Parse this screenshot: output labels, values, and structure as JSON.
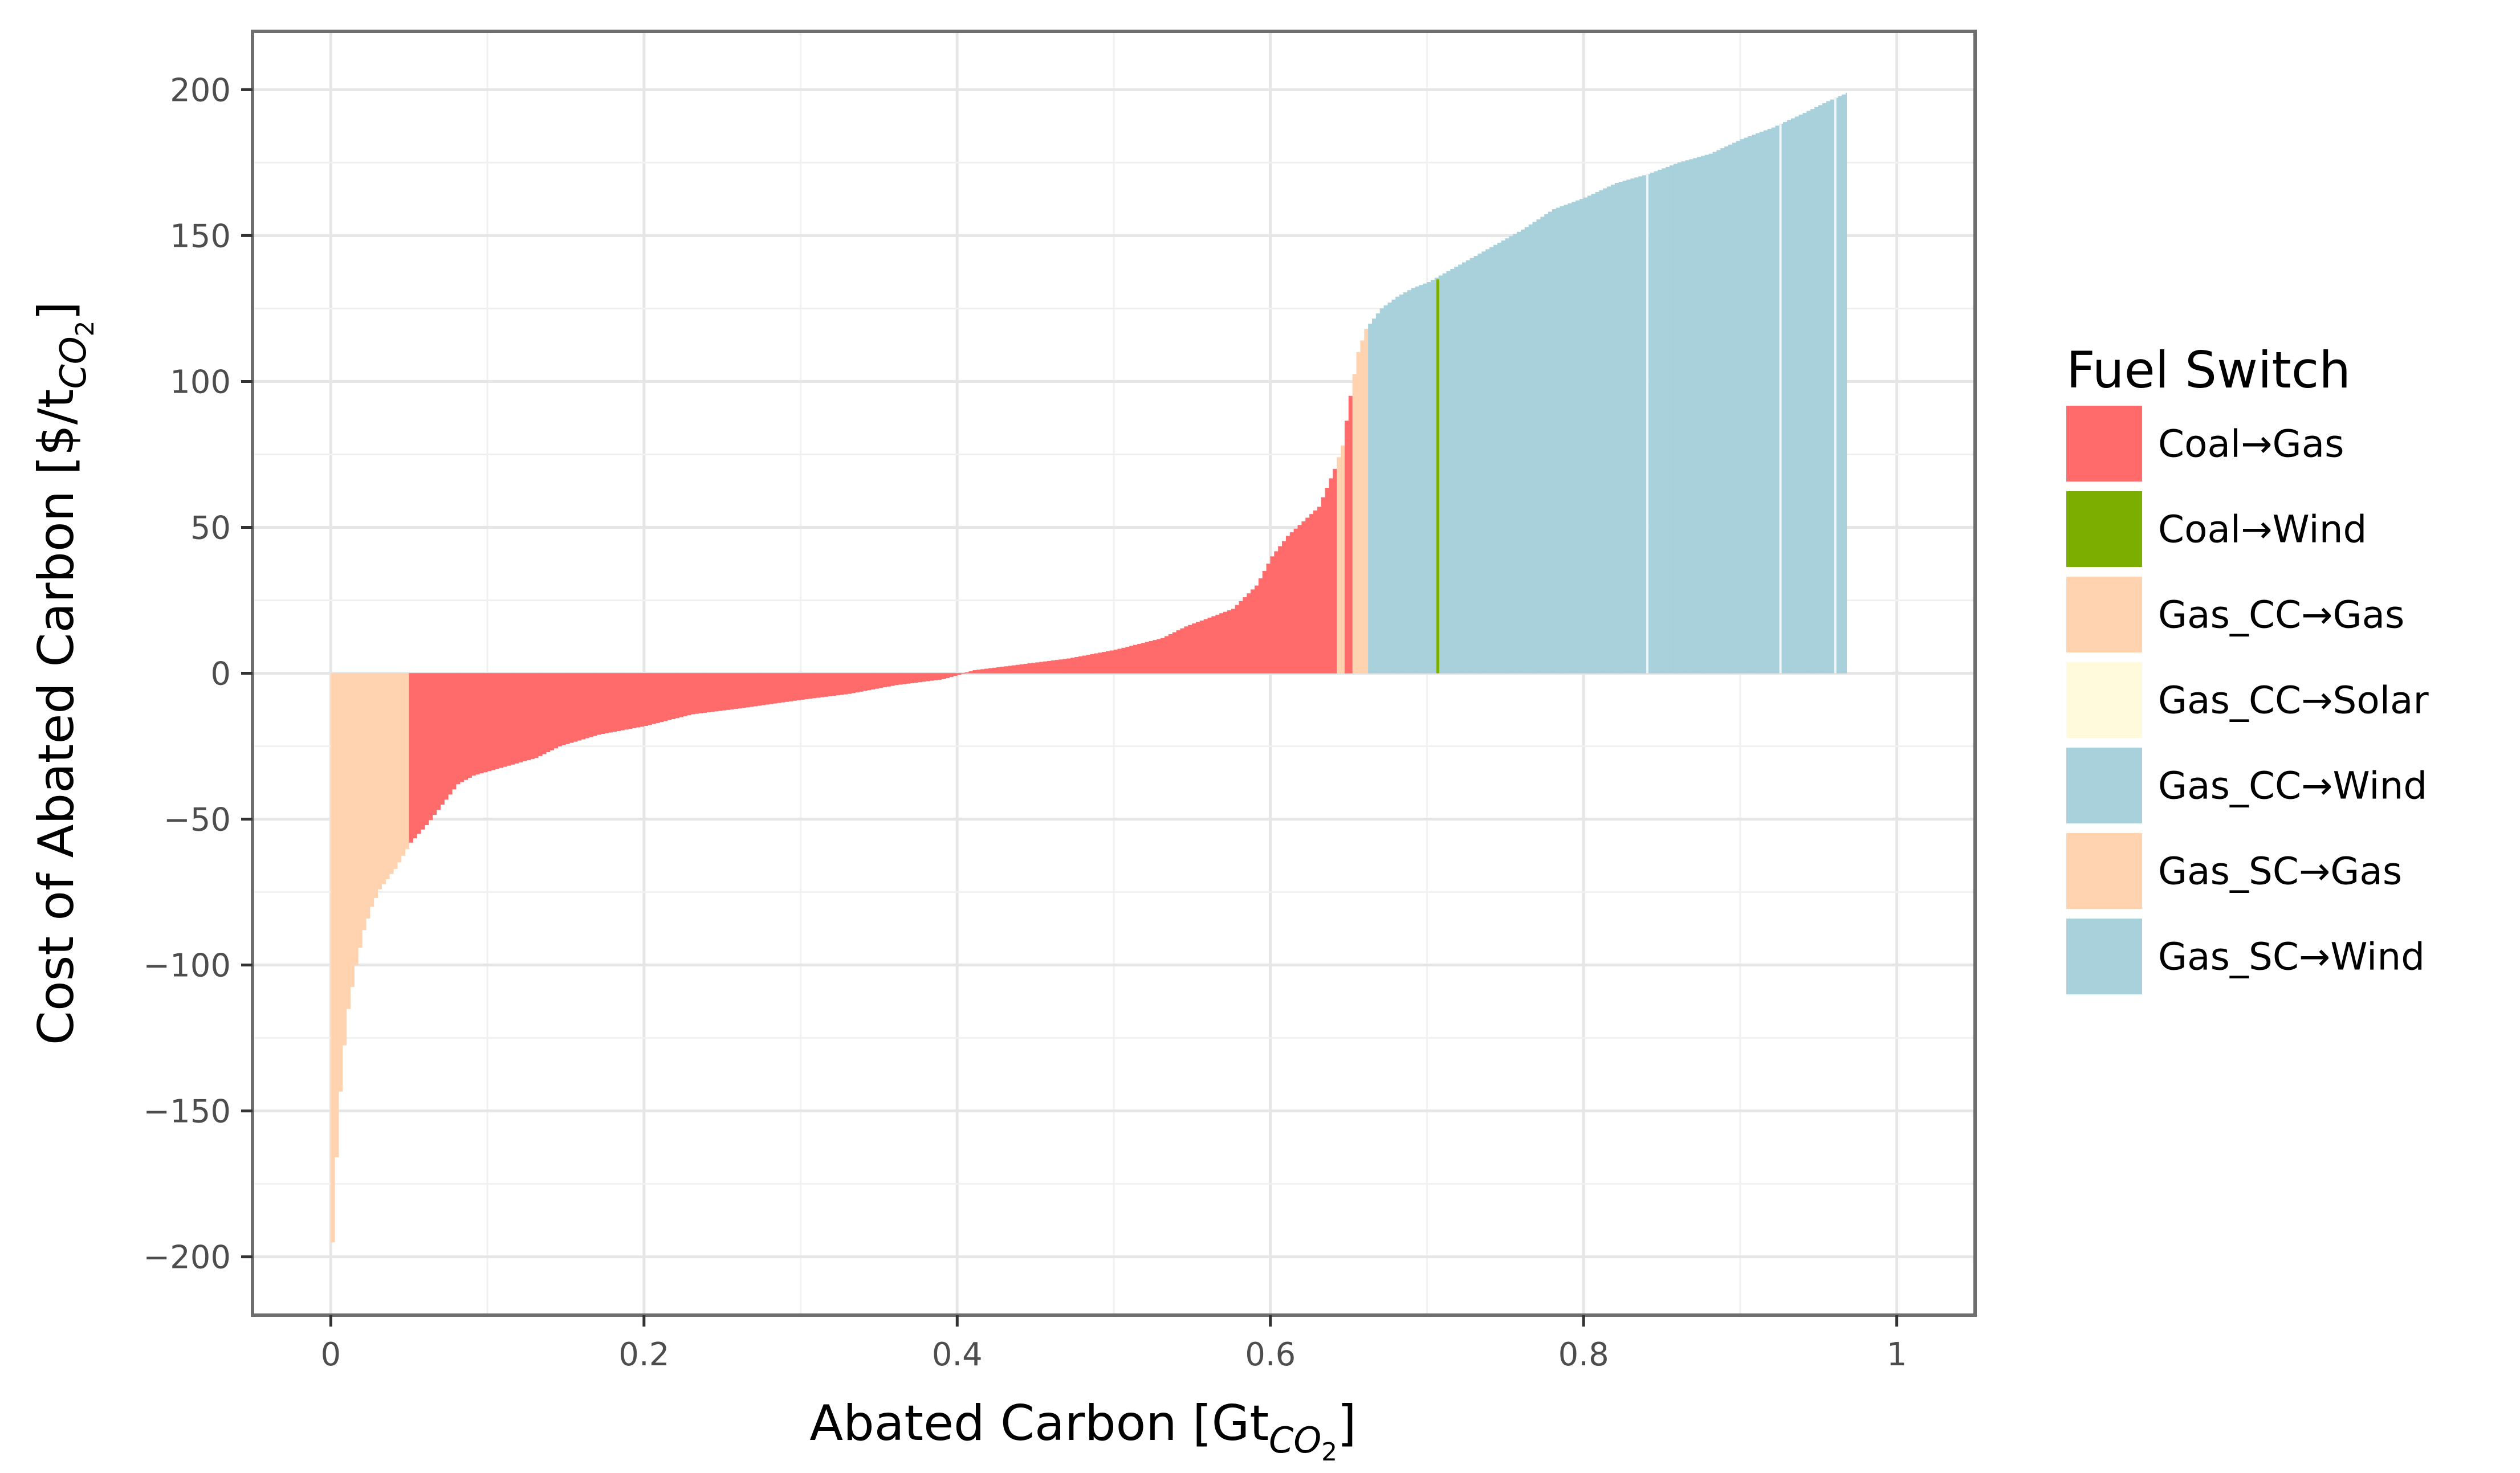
{
  "chart_data": {
    "type": "bar",
    "subtype": "marginal-abatement-cost-curve",
    "title": "",
    "xlabel": {
      "main": "Abated Carbon [Gt",
      "sub": "CO",
      "sub2": "2",
      "end": "]"
    },
    "ylabel": {
      "main": "Cost of Abated Carbon [$/t",
      "sub": "CO",
      "sub2": "2",
      "end": "]"
    },
    "xlim": [
      -0.05,
      1.05
    ],
    "ylim": [
      -220,
      220
    ],
    "x_ticks": [
      0,
      0.2,
      0.4,
      0.6,
      0.8,
      1.0
    ],
    "x_tick_labels": [
      "0",
      "0.2",
      "0.4",
      "0.6",
      "0.8",
      "1"
    ],
    "y_ticks": [
      200,
      150,
      100,
      50,
      0,
      -50,
      -100,
      -150,
      -200
    ],
    "y_tick_labels": [
      "200",
      "150",
      "100",
      "50",
      "0",
      "−50",
      "−100",
      "−150",
      "−200"
    ],
    "grid": true,
    "legend": {
      "title": "Fuel Switch",
      "position": "right",
      "entries": [
        {
          "label": "Coal→Gas",
          "color": "#ff6b6b"
        },
        {
          "label": "Coal→Wind",
          "color": "#7cae00"
        },
        {
          "label": "Gas_CC→Gas",
          "color": "#ffd3b0"
        },
        {
          "label": "Gas_CC→Solar",
          "color": "#fffadc"
        },
        {
          "label": "Gas_CC→Wind",
          "color": "#a8d1dc"
        },
        {
          "label": "Gas_SC→Gas",
          "color": "#ffd3b0"
        },
        {
          "label": "Gas_SC→Wind",
          "color": "#a8d1dc"
        }
      ]
    },
    "curve_points": [
      {
        "x": 0.0,
        "y": -195,
        "category": "Gas_SC→Gas"
      },
      {
        "x": 0.003,
        "y": -160,
        "category": "Gas_SC→Gas"
      },
      {
        "x": 0.006,
        "y": -135,
        "category": "Gas_SC→Gas"
      },
      {
        "x": 0.01,
        "y": -115,
        "category": "Gas_SC→Gas"
      },
      {
        "x": 0.015,
        "y": -100,
        "category": "Gas_SC→Gas"
      },
      {
        "x": 0.02,
        "y": -88,
        "category": "Gas_SC→Gas"
      },
      {
        "x": 0.025,
        "y": -80,
        "category": "Gas_SC→Gas"
      },
      {
        "x": 0.03,
        "y": -74,
        "category": "Gas_SC→Gas"
      },
      {
        "x": 0.04,
        "y": -67,
        "category": "Gas_SC→Gas"
      },
      {
        "x": 0.05,
        "y": -58,
        "category": "Coal→Gas"
      },
      {
        "x": 0.06,
        "y": -52,
        "category": "Coal→Gas"
      },
      {
        "x": 0.07,
        "y": -45,
        "category": "Coal→Gas"
      },
      {
        "x": 0.08,
        "y": -38,
        "category": "Coal→Gas"
      },
      {
        "x": 0.09,
        "y": -35,
        "category": "Coal→Gas"
      },
      {
        "x": 0.11,
        "y": -32,
        "category": "Coal→Gas"
      },
      {
        "x": 0.13,
        "y": -29,
        "category": "Coal→Gas"
      },
      {
        "x": 0.145,
        "y": -25,
        "category": "Coal→Gas"
      },
      {
        "x": 0.17,
        "y": -21,
        "category": "Coal→Gas"
      },
      {
        "x": 0.2,
        "y": -18,
        "category": "Coal→Gas"
      },
      {
        "x": 0.23,
        "y": -14,
        "category": "Coal→Gas"
      },
      {
        "x": 0.26,
        "y": -12,
        "category": "Coal→Gas"
      },
      {
        "x": 0.3,
        "y": -9,
        "category": "Coal→Gas"
      },
      {
        "x": 0.33,
        "y": -7,
        "category": "Coal→Gas"
      },
      {
        "x": 0.36,
        "y": -4,
        "category": "Coal→Gas"
      },
      {
        "x": 0.39,
        "y": -2,
        "category": "Coal→Gas"
      },
      {
        "x": 0.41,
        "y": 1,
        "category": "Coal→Gas"
      },
      {
        "x": 0.44,
        "y": 3,
        "category": "Coal→Gas"
      },
      {
        "x": 0.47,
        "y": 5,
        "category": "Coal→Gas"
      },
      {
        "x": 0.5,
        "y": 8,
        "category": "Coal→Gas"
      },
      {
        "x": 0.53,
        "y": 12,
        "category": "Coal→Gas"
      },
      {
        "x": 0.545,
        "y": 16,
        "category": "Coal→Gas"
      },
      {
        "x": 0.56,
        "y": 19,
        "category": "Coal→Gas"
      },
      {
        "x": 0.575,
        "y": 22,
        "category": "Coal→Gas"
      },
      {
        "x": 0.59,
        "y": 30,
        "category": "Coal→Gas"
      },
      {
        "x": 0.6,
        "y": 40,
        "category": "Coal→Gas"
      },
      {
        "x": 0.61,
        "y": 47,
        "category": "Coal→Gas"
      },
      {
        "x": 0.62,
        "y": 52,
        "category": "Coal→Gas"
      },
      {
        "x": 0.63,
        "y": 57,
        "category": "Coal→Gas"
      },
      {
        "x": 0.64,
        "y": 70,
        "category": "Gas_CC→Gas"
      },
      {
        "x": 0.645,
        "y": 78,
        "category": "Coal→Gas"
      },
      {
        "x": 0.65,
        "y": 95,
        "category": "Gas_CC→Gas"
      },
      {
        "x": 0.655,
        "y": 110,
        "category": "Gas_CC→Gas"
      },
      {
        "x": 0.66,
        "y": 118,
        "category": "Gas_CC→Wind"
      },
      {
        "x": 0.67,
        "y": 125,
        "category": "Gas_CC→Wind"
      },
      {
        "x": 0.68,
        "y": 129,
        "category": "Gas_CC→Wind"
      },
      {
        "x": 0.69,
        "y": 132,
        "category": "Gas_CC→Wind"
      },
      {
        "x": 0.7,
        "y": 134,
        "category": "Gas_CC→Wind"
      },
      {
        "x": 0.72,
        "y": 140,
        "category": "Gas_CC→Wind"
      },
      {
        "x": 0.74,
        "y": 146,
        "category": "Gas_CC→Wind"
      },
      {
        "x": 0.76,
        "y": 152,
        "category": "Gas_CC→Wind"
      },
      {
        "x": 0.78,
        "y": 159,
        "category": "Gas_CC→Wind"
      },
      {
        "x": 0.8,
        "y": 163,
        "category": "Gas_CC→Wind"
      },
      {
        "x": 0.82,
        "y": 168,
        "category": "Gas_CC→Wind"
      },
      {
        "x": 0.84,
        "y": 171,
        "category": "Gas_CC→Wind"
      },
      {
        "x": 0.86,
        "y": 175,
        "category": "Gas_CC→Wind"
      },
      {
        "x": 0.88,
        "y": 178,
        "category": "Gas_CC→Wind"
      },
      {
        "x": 0.9,
        "y": 183,
        "category": "Gas_CC→Wind"
      },
      {
        "x": 0.92,
        "y": 187,
        "category": "Gas_CC→Wind"
      },
      {
        "x": 0.94,
        "y": 192,
        "category": "Gas_CC→Wind"
      },
      {
        "x": 0.955,
        "y": 196,
        "category": "Gas_CC→Wind"
      },
      {
        "x": 0.968,
        "y": 199,
        "category": "Gas_CC→Wind"
      }
    ],
    "highlighted_bars": [
      {
        "x": 0.706,
        "y": 135,
        "category": "Coal→Wind"
      }
    ]
  }
}
